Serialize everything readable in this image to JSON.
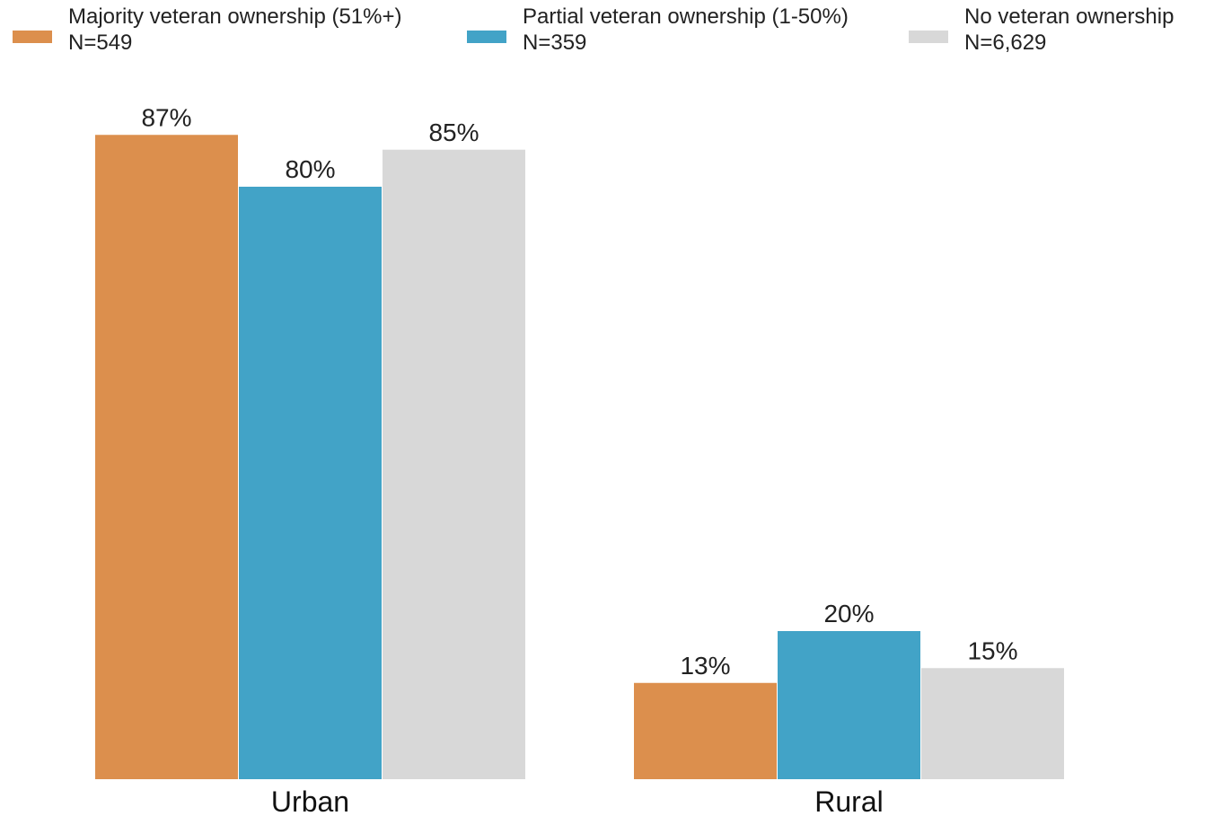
{
  "chart_data": {
    "type": "bar",
    "title": "",
    "xlabel": "",
    "ylabel": "",
    "ylim": [
      0,
      100
    ],
    "grid": false,
    "legend_position": "top",
    "value_suffix": "%",
    "categories": [
      "Urban",
      "Rural"
    ],
    "series": [
      {
        "name": "Majority veteran ownership (51%+)",
        "n_label": "N=549",
        "color": "#DC8F4D",
        "values": [
          87,
          13
        ]
      },
      {
        "name": "Partial veteran ownership (1-50%)",
        "n_label": "N=359",
        "color": "#42A3C7",
        "values": [
          80,
          20
        ]
      },
      {
        "name": "No veteran ownership",
        "n_label": "N=6,629",
        "color": "#D8D8D8",
        "values": [
          85,
          15
        ]
      }
    ]
  }
}
